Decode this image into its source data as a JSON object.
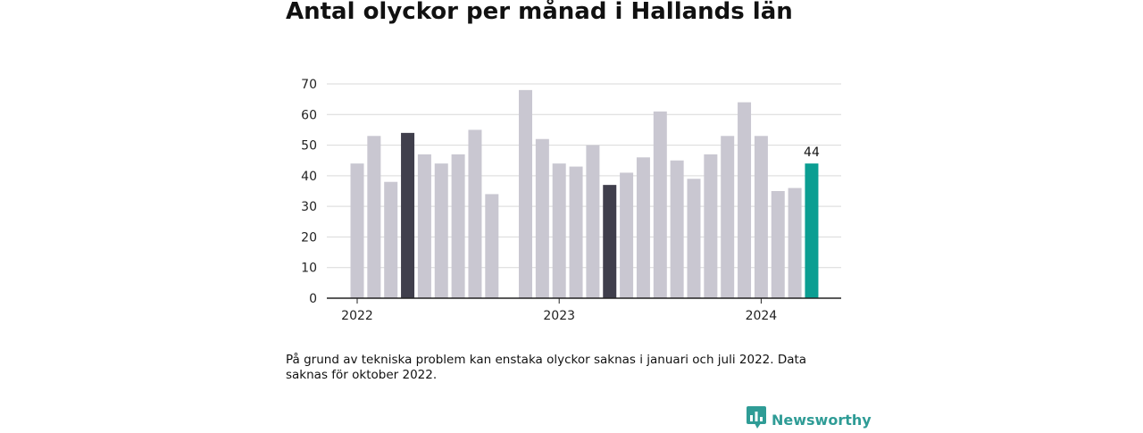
{
  "chart_data": {
    "type": "bar",
    "title": "Antal olyckor per månad i Hallands län",
    "xlabel": "",
    "ylabel": "",
    "ylim": [
      0,
      70
    ],
    "yticks": [
      0,
      10,
      20,
      30,
      40,
      50,
      60,
      70
    ],
    "grid": true,
    "categories": [
      "2022-01",
      "2022-02",
      "2022-03",
      "2022-04",
      "2022-05",
      "2022-06",
      "2022-07",
      "2022-08",
      "2022-09",
      "2022-10",
      "2022-11",
      "2022-12",
      "2023-01",
      "2023-02",
      "2023-03",
      "2023-04",
      "2023-05",
      "2023-06",
      "2023-07",
      "2023-08",
      "2023-09",
      "2023-10",
      "2023-11",
      "2023-12",
      "2024-01",
      "2024-02",
      "2024-03",
      "2024-04"
    ],
    "values": [
      44,
      53,
      38,
      54,
      47,
      44,
      47,
      55,
      34,
      null,
      68,
      52,
      44,
      43,
      50,
      37,
      41,
      46,
      61,
      45,
      39,
      47,
      53,
      64,
      53,
      35,
      36,
      44
    ],
    "highlight": {
      "2022-04": "#403f4c",
      "2023-04": "#403f4c",
      "2024-04": "#0b9e92"
    },
    "default_color": "#c9c7d1",
    "data_labels": [
      {
        "category": "2024-04",
        "text": "44"
      }
    ],
    "x_tick_labels": [
      {
        "category": "2022-01",
        "text": "2022"
      },
      {
        "category": "2023-01",
        "text": "2023"
      },
      {
        "category": "2024-01",
        "text": "2024"
      }
    ]
  },
  "note": "På grund av tekniska problem kan enstaka olyckor saknas i januari och juli 2022. Data saknas för oktober 2022.",
  "brand": {
    "name": "Newsworthy",
    "color": "#2f9c96",
    "icon": "bar-chart-speech-bubble-icon"
  }
}
